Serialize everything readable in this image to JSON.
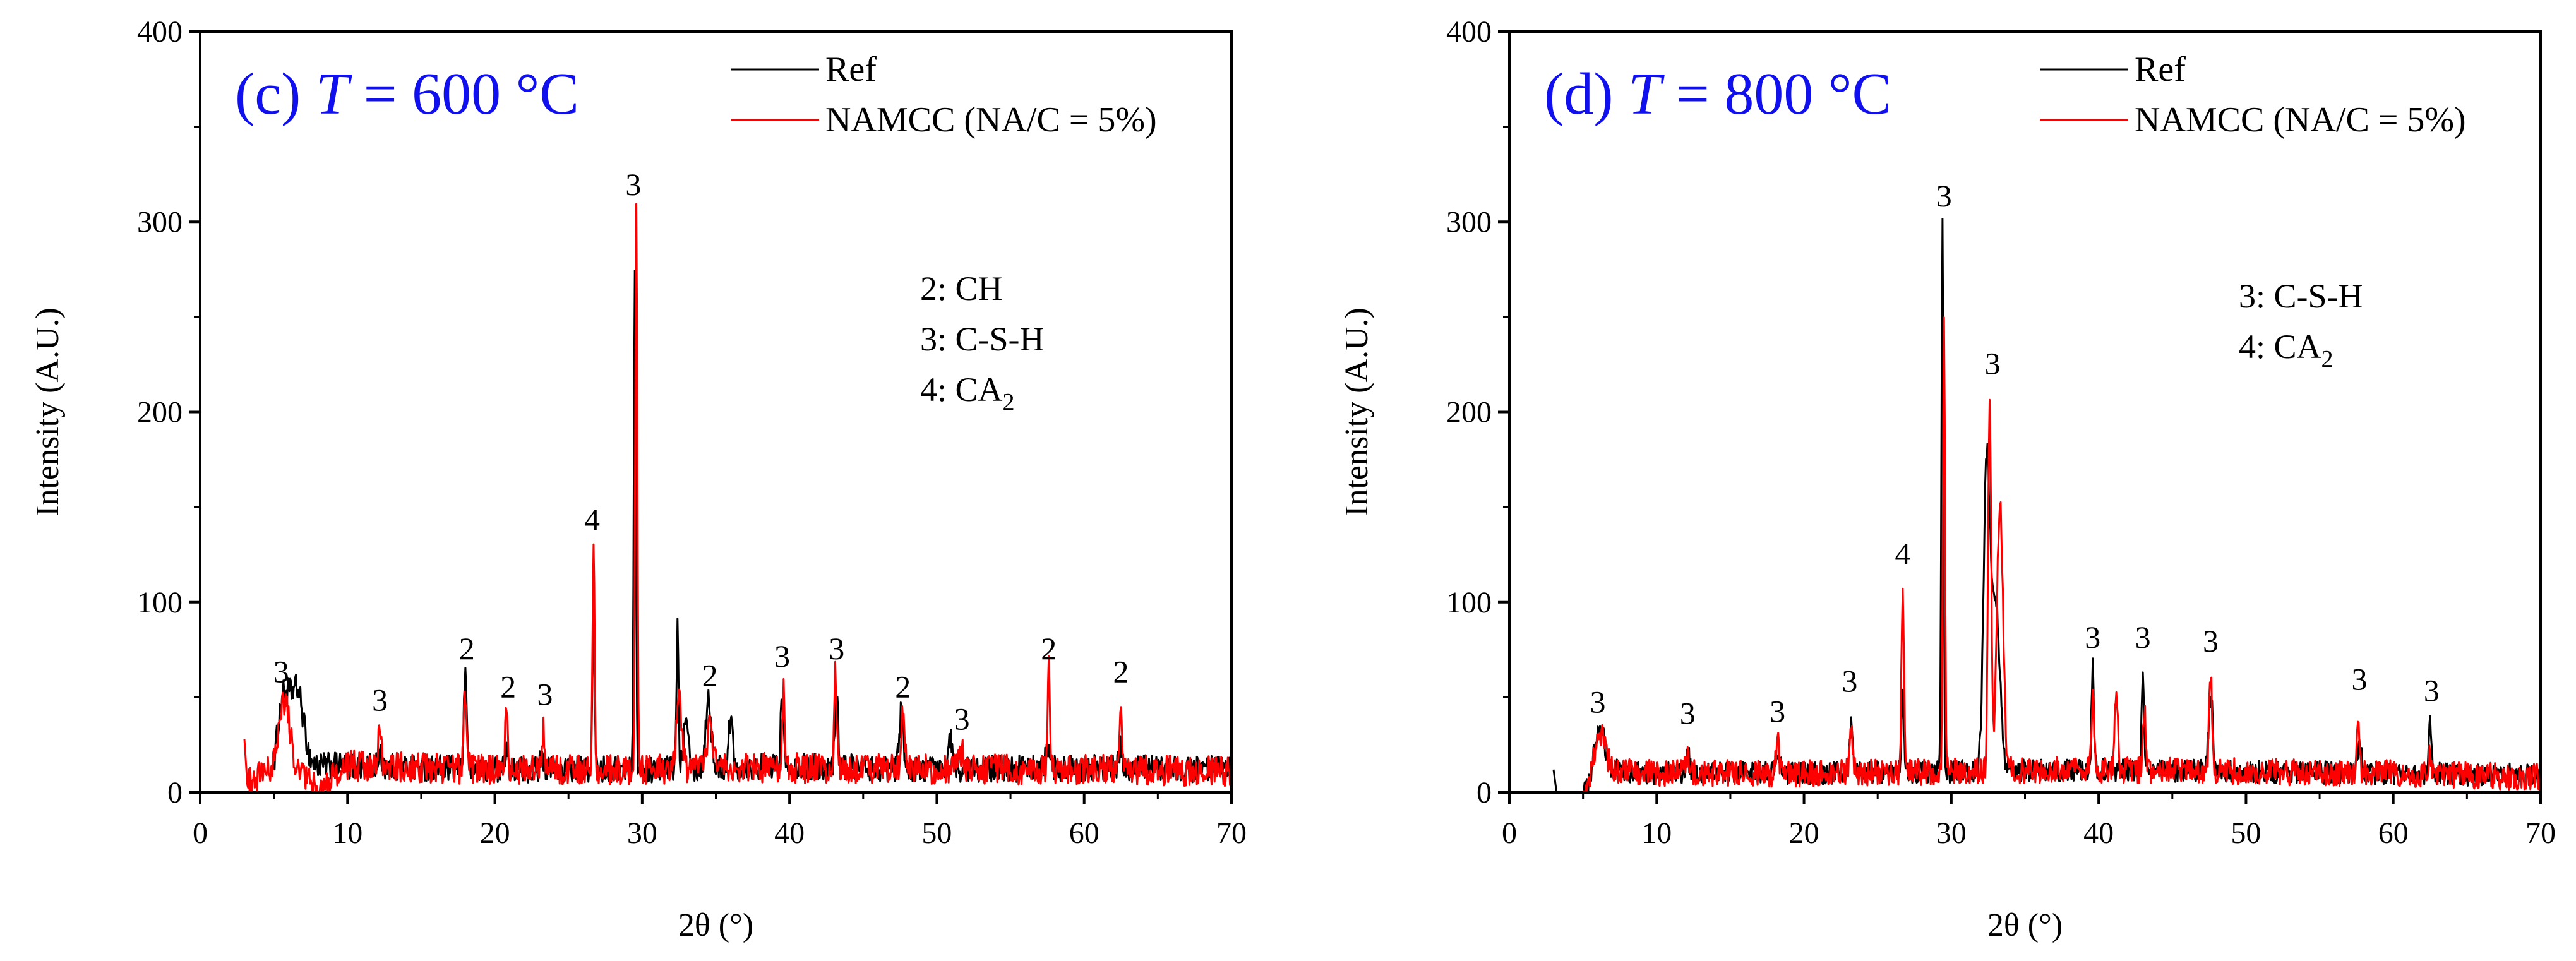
{
  "chart_data": [
    {
      "type": "line",
      "panel_label": "(c) ",
      "title_italic": "T",
      "title_rest": " = 600 °C",
      "xlabel": "2θ (°)",
      "ylabel": "Intensity (A.U.)",
      "xlim": [
        0,
        70
      ],
      "ylim": [
        0,
        400
      ],
      "xticks": [
        0,
        10,
        20,
        30,
        40,
        50,
        60,
        70
      ],
      "yticks": [
        0,
        100,
        200,
        300,
        400
      ],
      "legend": [
        "Ref",
        "NAMCC (NA/C = 5%)"
      ],
      "legend_position": "top-right",
      "key": [
        {
          "text": "2: CH",
          "sub": ""
        },
        {
          "text": "3: C-S-H",
          "sub": ""
        },
        {
          "text": "4: CA",
          "sub": "2"
        }
      ],
      "peak_labels": [
        {
          "text": "3",
          "x": 5.5,
          "y": 58
        },
        {
          "text": "3",
          "x": 12.2,
          "y": 43
        },
        {
          "text": "2",
          "x": 18.1,
          "y": 70
        },
        {
          "text": "2",
          "x": 20.9,
          "y": 50
        },
        {
          "text": "3",
          "x": 23.4,
          "y": 46
        },
        {
          "text": "4",
          "x": 26.6,
          "y": 138
        },
        {
          "text": "3",
          "x": 29.4,
          "y": 314
        },
        {
          "text": "2",
          "x": 34.6,
          "y": 56
        },
        {
          "text": "3",
          "x": 39.5,
          "y": 66
        },
        {
          "text": "3",
          "x": 43.2,
          "y": 70
        },
        {
          "text": "2",
          "x": 47.7,
          "y": 50
        },
        {
          "text": "3",
          "x": 51.7,
          "y": 33
        },
        {
          "text": "2",
          "x": 57.6,
          "y": 70
        },
        {
          "text": "2",
          "x": 62.5,
          "y": 58
        }
      ],
      "series": [
        {
          "name": "Ref",
          "color": "#000000",
          "base": [
            [
              5,
              0
            ],
            [
              6,
              14
            ],
            [
              10,
              14
            ],
            [
              20,
              12
            ],
            [
              30,
              12
            ],
            [
              40,
              14
            ],
            [
              50,
              12
            ],
            [
              60,
              13
            ],
            [
              70,
              12
            ]
          ],
          "peaks": [
            [
              5.6,
              40,
              0.6
            ],
            [
              6.6,
              38,
              0.6
            ],
            [
              12.2,
              5,
              0.25
            ],
            [
              18.0,
              50,
              0.15
            ],
            [
              20.8,
              15,
              0.12
            ],
            [
              23.2,
              10,
              0.15
            ],
            [
              26.7,
              80,
              0.1
            ],
            [
              29.5,
              260,
              0.1
            ],
            [
              32.4,
              75,
              0.1
            ],
            [
              33.0,
              30,
              0.25
            ],
            [
              34.5,
              38,
              0.25
            ],
            [
              36.0,
              25,
              0.2
            ],
            [
              39.5,
              35,
              0.15
            ],
            [
              43.2,
              40,
              0.15
            ],
            [
              47.6,
              30,
              0.2
            ],
            [
              50.9,
              15,
              0.2
            ],
            [
              57.5,
              12,
              0.15
            ],
            [
              62.5,
              12,
              0.15
            ]
          ],
          "noise": 7
        },
        {
          "name": "NAMCC (NA/C = 5%)",
          "color": "#ff0000",
          "start": [
            3,
            28
          ],
          "base": [
            [
              3.2,
              5
            ],
            [
              4,
              8
            ],
            [
              5,
              10
            ],
            [
              7,
              9
            ],
            [
              8,
              0
            ],
            [
              9,
              8
            ],
            [
              10,
              14
            ],
            [
              20,
              12
            ],
            [
              30,
              12
            ],
            [
              40,
              13
            ],
            [
              50,
              12
            ],
            [
              60,
              12
            ],
            [
              70,
              11
            ]
          ],
          "peaks": [
            [
              5.7,
              38,
              0.6
            ],
            [
              12.2,
              20,
              0.15
            ],
            [
              18.0,
              40,
              0.15
            ],
            [
              20.8,
              35,
              0.12
            ],
            [
              23.3,
              20,
              0.12
            ],
            [
              26.7,
              118,
              0.1
            ],
            [
              29.6,
              295,
              0.1
            ],
            [
              32.5,
              35,
              0.25
            ],
            [
              34.6,
              25,
              0.25
            ],
            [
              39.6,
              40,
              0.12
            ],
            [
              43.1,
              50,
              0.12
            ],
            [
              47.7,
              30,
              0.15
            ],
            [
              51.7,
              10,
              0.2
            ],
            [
              57.6,
              55,
              0.1
            ],
            [
              62.5,
              40,
              0.1
            ]
          ],
          "noise": 8
        }
      ]
    },
    {
      "type": "line",
      "panel_label": "(d) ",
      "title_italic": "T",
      "title_rest": " = 800 °C",
      "xlabel": "2θ (°)",
      "ylabel": "Intensity (A.U.)",
      "xlim": [
        0,
        70
      ],
      "ylim": [
        0,
        400
      ],
      "xticks": [
        0,
        10,
        20,
        30,
        40,
        50,
        60,
        70
      ],
      "yticks": [
        0,
        100,
        200,
        300,
        400
      ],
      "legend": [
        "Ref",
        "NAMCC (NA/C = 5%)"
      ],
      "legend_position": "top-right",
      "key": [
        {
          "text": "3: C-S-H",
          "sub": ""
        },
        {
          "text": "4: CA",
          "sub": "2"
        }
      ],
      "peak_labels": [
        {
          "text": "3",
          "x": 6.0,
          "y": 42
        },
        {
          "text": "3",
          "x": 12.1,
          "y": 36
        },
        {
          "text": "3",
          "x": 18.2,
          "y": 37
        },
        {
          "text": "3",
          "x": 23.1,
          "y": 53
        },
        {
          "text": "4",
          "x": 26.7,
          "y": 120
        },
        {
          "text": "3",
          "x": 29.5,
          "y": 308
        },
        {
          "text": "3",
          "x": 32.8,
          "y": 220
        },
        {
          "text": "3",
          "x": 39.6,
          "y": 76
        },
        {
          "text": "3",
          "x": 43.0,
          "y": 76
        },
        {
          "text": "3",
          "x": 47.6,
          "y": 74
        },
        {
          "text": "3",
          "x": 57.7,
          "y": 54
        },
        {
          "text": "3",
          "x": 62.6,
          "y": 48
        }
      ],
      "series": [
        {
          "name": "Ref",
          "color": "#000000",
          "start": [
            3,
            12
          ],
          "base": [
            [
              3.2,
              0
            ],
            [
              5,
              0
            ],
            [
              6.5,
              12
            ],
            [
              10,
              10
            ],
            [
              20,
              10
            ],
            [
              30,
              11
            ],
            [
              40,
              12
            ],
            [
              50,
              11
            ],
            [
              60,
              10
            ],
            [
              70,
              9
            ]
          ],
          "peaks": [
            [
              6.1,
              25,
              0.5
            ],
            [
              12.1,
              10,
              0.2
            ],
            [
              18.2,
              12,
              0.2
            ],
            [
              23.2,
              25,
              0.15
            ],
            [
              26.7,
              40,
              0.12
            ],
            [
              29.4,
              290,
              0.1
            ],
            [
              32.4,
              160,
              0.3
            ],
            [
              33.0,
              90,
              0.4
            ],
            [
              39.6,
              55,
              0.12
            ],
            [
              43.0,
              55,
              0.12
            ],
            [
              47.6,
              40,
              0.2
            ],
            [
              57.7,
              15,
              0.2
            ],
            [
              62.5,
              28,
              0.12
            ]
          ],
          "noise": 6
        },
        {
          "name": "NAMCC (NA/C = 5%)",
          "color": "#ff0000",
          "base": [
            [
              3.2,
              0
            ],
            [
              5,
              0
            ],
            [
              6.5,
              12
            ],
            [
              10,
              10
            ],
            [
              20,
              10
            ],
            [
              30,
              11
            ],
            [
              40,
              12
            ],
            [
              50,
              11
            ],
            [
              60,
              10
            ],
            [
              70,
              8
            ]
          ],
          "peaks": [
            [
              6.1,
              22,
              0.5
            ],
            [
              12.1,
              8,
              0.2
            ],
            [
              18.2,
              18,
              0.15
            ],
            [
              23.2,
              22,
              0.15
            ],
            [
              26.7,
              98,
              0.12
            ],
            [
              29.5,
              240,
              0.1
            ],
            [
              32.6,
              195,
              0.15
            ],
            [
              33.3,
              140,
              0.3
            ],
            [
              39.6,
              40,
              0.12
            ],
            [
              41.2,
              42,
              0.15
            ],
            [
              43.1,
              30,
              0.15
            ],
            [
              47.6,
              50,
              0.15
            ],
            [
              57.6,
              32,
              0.12
            ],
            [
              62.5,
              12,
              0.15
            ]
          ],
          "noise": 7
        }
      ]
    }
  ]
}
